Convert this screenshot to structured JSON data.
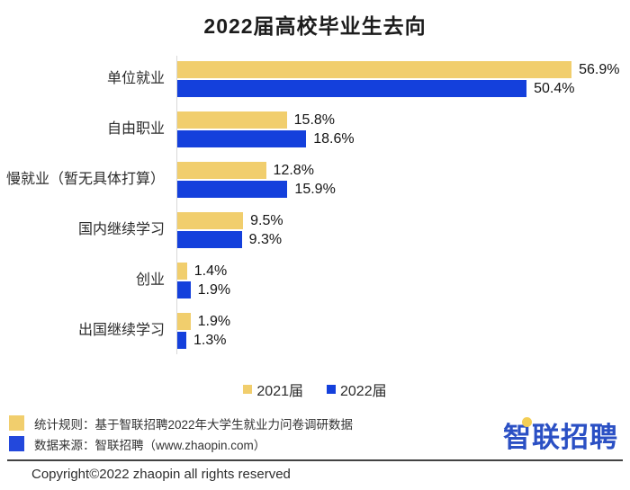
{
  "title": "2022届高校毕业生去向",
  "chart_data": {
    "type": "bar",
    "orientation": "horizontal",
    "title": "2022届高校毕业生去向",
    "categories": [
      "单位就业",
      "自由职业",
      "慢就业（暂无具体打算）",
      "国内继续学习",
      "创业",
      "出国继续学习"
    ],
    "series": [
      {
        "name": "2021届",
        "color": "#F1CE6D",
        "values": [
          56.9,
          15.8,
          12.8,
          9.5,
          1.4,
          1.9
        ]
      },
      {
        "name": "2022届",
        "color": "#1440DC",
        "values": [
          50.4,
          18.6,
          15.9,
          9.3,
          1.9,
          1.3
        ]
      }
    ],
    "value_suffix": "%",
    "xlim": [
      0,
      60
    ],
    "grid": false,
    "legend_position": "bottom-center"
  },
  "footer": {
    "notes": [
      {
        "marker_color": "#F1CE6D",
        "text": "统计规则：基于智联招聘2022年大学生就业力问卷调研数据"
      },
      {
        "marker_color": "#2348DC",
        "text": "数据来源：智联招聘（www.zhaopin.com）"
      }
    ],
    "copyright": "Copyright©2022 zhaopin all rights reserved"
  },
  "logo": {
    "text": "智联招聘",
    "color": "#2B50C4",
    "dot_color": "#F3CE54"
  }
}
